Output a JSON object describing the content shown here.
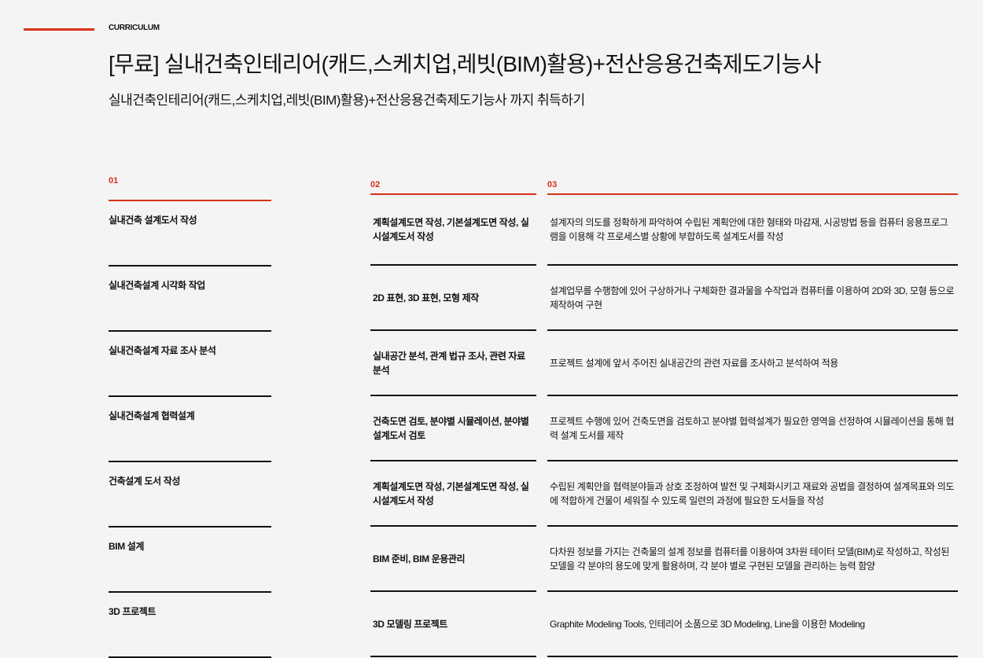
{
  "header": {
    "eyebrow": "CURRICULUM",
    "title": "[무료] 실내건축인테리어(캐드,스케치업,레빗(BIM)활용)+전산응용건축제도기능사",
    "subtitle": "실내건축인테리어(캐드,스케치업,레빗(BIM)활용)+전산응용건축제도기능사 까지 취득하기"
  },
  "accent_color": "#d9301a",
  "columns": [
    {
      "number": "01",
      "items": [
        "실내건축 설계도서 작성",
        "실내건축설계 시각화 작업",
        "실내건축설계 자료 조사 분석",
        "실내건축설계 협력설계",
        "건축설계 도서 작성",
        "BIM 설계",
        "3D 프로젝트"
      ]
    },
    {
      "number": "02",
      "items": [
        "계획설계도면 작성, 기본설계도면 작성, 실시설계도서 작성",
        "2D 표현, 3D 표현, 모형 제작",
        "실내공간 분석, 관계 법규 조사, 관련 자료 분석",
        "건축도면 검토, 분야별 시뮬레이션, 분야별 설계도서 검토",
        "계획설계도면 작성, 기본설계도면 작성, 실시설계도서 작성",
        "BIM 준비, BIM 운용관리",
        "3D 모델링 프로젝트"
      ]
    },
    {
      "number": "03",
      "items": [
        "설계자의 의도를 정확하게 파악하여 수립된 계획안에 대한 형태와 마감재, 시공방법 등을 컴퓨터 응용프로그램을 이용해 각 프로세스별 상황에 부합하도록 설계도서를 작성",
        "설계업무를 수행함에 있어 구상하거나 구체화한 결과물을 수작업과 컴퓨터를 이용하여 2D와 3D, 모형 등으로 제작하여 구현",
        "프로젝트 설계에 앞서 주어진 실내공간의 관련 자료를 조사하고 분석하여 적용",
        "프로젝트 수행에 있어 건축도면을 검토하고 분야별 협력설계가 필요한 영역을 선정하여 시뮬레이션을 통해 협력 설계 도서를 제작",
        "수립된 계획안을 협력분야들과 상호 조정하여 발전 및 구체화시키고 재료와 공법을 결정하여 설계목표와 의도에 적합하게 건물이 세워질 수 있도록 일련의 과정에 필요한 도서들을 작성",
        "다차원 정보를 가지는 건축물의 설계 정보를 컴퓨터를 이용하여 3차원 테이터 모델(BIM)로 작성하고, 작성된 모델을 각 분야의 용도에 맞게 활용하며, 각 분야 별로 구현된 모델을 관리하는 능력 함양",
        "Graphite Modeling Tools, 인테리어 소품으로 3D Modeling, Line을 이용한 Modeling"
      ]
    }
  ]
}
